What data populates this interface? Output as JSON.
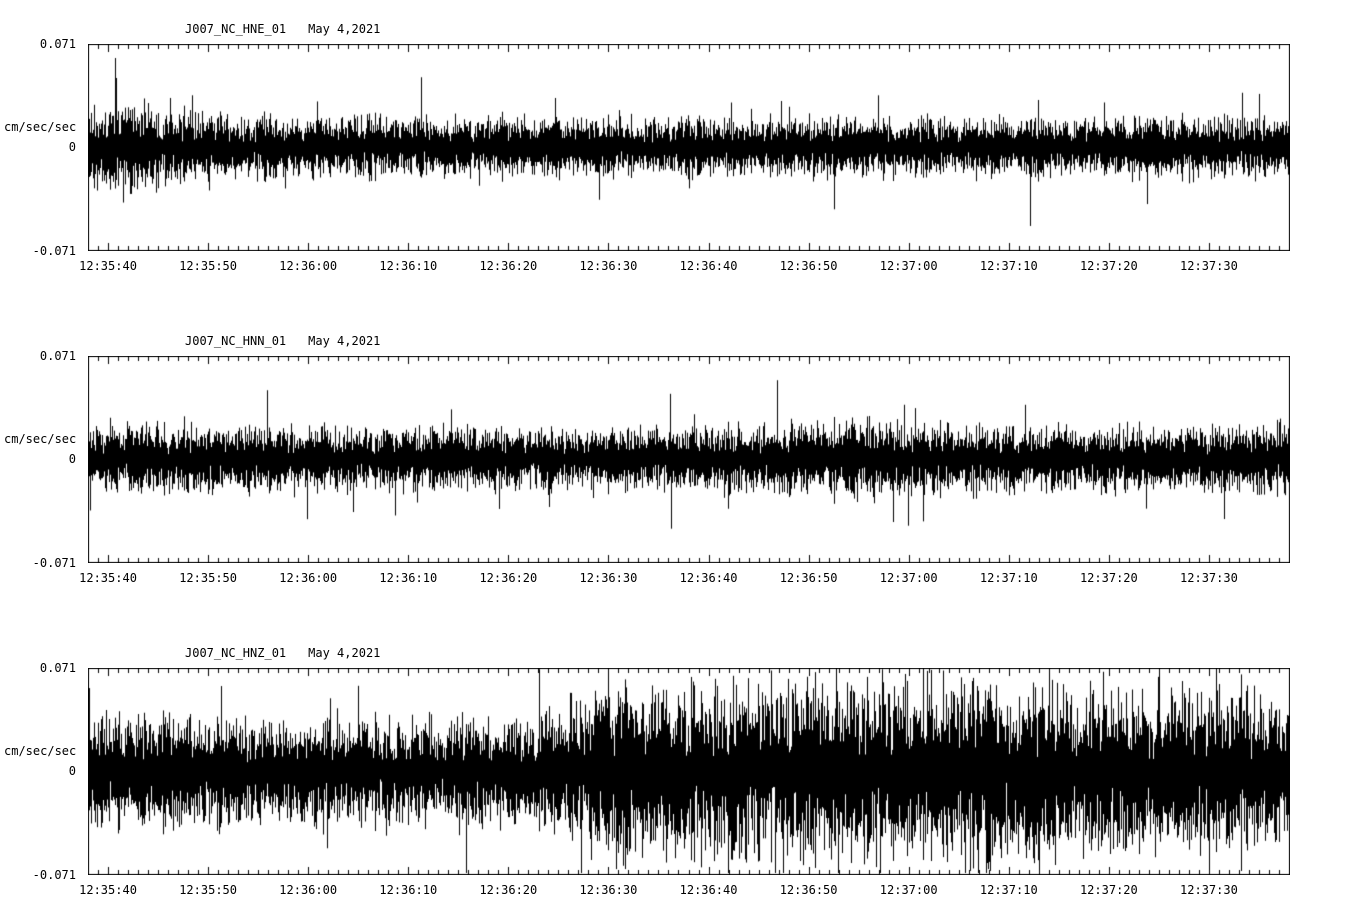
{
  "page": {
    "background": "#ffffff",
    "trace_color": "#000000"
  },
  "chart_data": [
    {
      "type": "line",
      "title": "J007_NC_HNE_01",
      "date": "May 4,2021",
      "ylabel": "cm/sec/sec",
      "ylim": [
        -0.071,
        0.071
      ],
      "ytick_labels": {
        "top": "0.071",
        "mid": "0",
        "bottom": "-0.071"
      },
      "x_tick_labels": [
        "12:35:40",
        "12:35:50",
        "12:36:00",
        "12:36:10",
        "12:36:20",
        "12:36:30",
        "12:36:40",
        "12:36:50",
        "12:37:00",
        "12:37:10",
        "12:37:20",
        "12:37:30"
      ],
      "x_span_seconds": 120,
      "first_tick_offset_seconds": 2,
      "tick_interval_seconds": 10,
      "grid": false,
      "legend": false,
      "envelope": [
        [
          0,
          0.026
        ],
        [
          5,
          0.028
        ],
        [
          10,
          0.022
        ],
        [
          20,
          0.019
        ],
        [
          40,
          0.018
        ],
        [
          70,
          0.018
        ],
        [
          100,
          0.018
        ],
        [
          120,
          0.019
        ]
      ],
      "seed": 11
    },
    {
      "type": "line",
      "title": "J007_NC_HNN_01",
      "date": "May 4,2021",
      "ylabel": "cm/sec/sec",
      "ylim": [
        -0.071,
        0.071
      ],
      "ytick_labels": {
        "top": "0.071",
        "mid": "0",
        "bottom": "-0.071"
      },
      "x_tick_labels": [
        "12:35:40",
        "12:35:50",
        "12:36:00",
        "12:36:10",
        "12:36:20",
        "12:36:30",
        "12:36:40",
        "12:36:50",
        "12:37:00",
        "12:37:10",
        "12:37:20",
        "12:37:30"
      ],
      "x_span_seconds": 120,
      "first_tick_offset_seconds": 2,
      "tick_interval_seconds": 10,
      "grid": false,
      "legend": false,
      "envelope": [
        [
          0,
          0.021
        ],
        [
          20,
          0.02
        ],
        [
          45,
          0.019
        ],
        [
          60,
          0.02
        ],
        [
          78,
          0.025
        ],
        [
          82,
          0.021
        ],
        [
          100,
          0.02
        ],
        [
          120,
          0.022
        ]
      ],
      "seed": 22
    },
    {
      "type": "line",
      "title": "J007_NC_HNZ_01",
      "date": "May 4,2021",
      "ylabel": "cm/sec/sec",
      "ylim": [
        -0.071,
        0.071
      ],
      "ytick_labels": {
        "top": "0.071",
        "mid": "0",
        "bottom": "-0.071"
      },
      "x_tick_labels": [
        "12:35:40",
        "12:35:50",
        "12:36:00",
        "12:36:10",
        "12:36:20",
        "12:36:30",
        "12:36:40",
        "12:36:50",
        "12:37:00",
        "12:37:10",
        "12:37:20",
        "12:37:30"
      ],
      "x_span_seconds": 120,
      "first_tick_offset_seconds": 2,
      "tick_interval_seconds": 10,
      "grid": false,
      "legend": false,
      "envelope": [
        [
          0,
          0.033
        ],
        [
          20,
          0.033
        ],
        [
          44,
          0.034
        ],
        [
          49,
          0.045
        ],
        [
          52,
          0.062
        ],
        [
          55,
          0.05
        ],
        [
          62,
          0.054
        ],
        [
          75,
          0.056
        ],
        [
          95,
          0.054
        ],
        [
          105,
          0.048
        ],
        [
          110,
          0.05
        ],
        [
          114,
          0.056
        ],
        [
          118,
          0.044
        ],
        [
          120,
          0.04
        ]
      ],
      "seed": 33
    }
  ]
}
